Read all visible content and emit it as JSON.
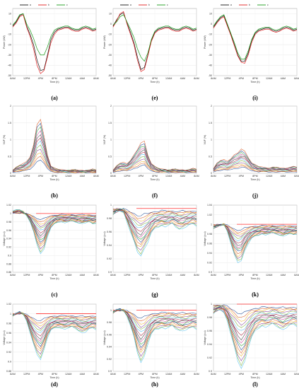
{
  "figure": {
    "panel_labels": [
      "(a)",
      "(b)",
      "(c)",
      "(d)",
      "(e)",
      "(f)",
      "(g)",
      "(h)",
      "(i)",
      "(j)",
      "(k)",
      "(l)"
    ]
  },
  "colors": {
    "legend_black": "#111111",
    "legend_red": "#e02020",
    "legend_green": "#1a9a1a",
    "reference_red": "#ff3030",
    "palette": [
      "#0b3c8c",
      "#d95319",
      "#edb120",
      "#7e2f8e",
      "#77ac30",
      "#4dbeee",
      "#a2142f",
      "#333333",
      "#cc3399",
      "#2ca02c"
    ]
  },
  "chart_data": [
    {
      "panel": "(a)",
      "type": "line",
      "ylabel": "Power (kW)",
      "xlabel": "Time (h)",
      "x_ticks": [
        "8AM",
        "12PM",
        "4PM",
        "8PM",
        "12AM",
        "4AM",
        "8AM"
      ],
      "y_ticks": [
        "10",
        "0",
        "-10",
        "-20",
        "-30",
        "-40",
        "-50"
      ],
      "ylim": [
        -50,
        15
      ],
      "legend": "top",
      "series": [
        {
          "legend_label": "a",
          "color": "#111111",
          "values": [
            -2,
            2,
            8,
            10,
            -2,
            -10,
            -20,
            -35,
            -45,
            -44,
            -30,
            -15,
            -8,
            -5,
            -4,
            -3,
            -3,
            -5,
            -6,
            -6,
            -4,
            -3,
            -4,
            -6,
            -5
          ]
        },
        {
          "legend_label": "b",
          "color": "#e02020",
          "values": [
            -3,
            1,
            7,
            9,
            -3,
            -12,
            -24,
            -40,
            -48,
            -45,
            -32,
            -18,
            -10,
            -6,
            -5,
            -4,
            -4,
            -6,
            -7,
            -7,
            -5,
            -4,
            -5,
            -7,
            -6
          ]
        },
        {
          "legend_label": "c",
          "color": "#1a9a1a",
          "values": [
            -1,
            3,
            9,
            10,
            0,
            -6,
            -14,
            -24,
            -30,
            -30,
            -22,
            -12,
            -6,
            -4,
            -3,
            -2,
            -2,
            -4,
            -5,
            -5,
            -3,
            -2,
            -3,
            -5,
            -4
          ]
        }
      ]
    },
    {
      "panel": "(e)",
      "type": "line",
      "ylabel": "Power (kW)",
      "xlabel": "Time (h)",
      "x_ticks": [
        "8AM",
        "12PM",
        "4PM",
        "8PM",
        "12AM",
        "4AM",
        "8AM"
      ],
      "y_ticks": [
        "10",
        "0",
        "-10",
        "-20",
        "-30",
        "-40",
        "-50"
      ],
      "ylim": [
        -50,
        15
      ],
      "legend": "top",
      "series": [
        {
          "legend_label": "a",
          "color": "#111111",
          "values": [
            -2,
            4,
            9,
            11,
            1,
            -8,
            -18,
            -32,
            -44,
            -42,
            -30,
            -16,
            -8,
            -5,
            -4,
            -3,
            -3,
            -5,
            -6,
            -6,
            -4,
            -3,
            -4,
            -6,
            -5
          ]
        },
        {
          "legend_label": "b",
          "color": "#e02020",
          "values": [
            -3,
            3,
            10,
            12,
            0,
            -10,
            -20,
            -35,
            -46,
            -44,
            -31,
            -17,
            -9,
            -6,
            -5,
            -4,
            -4,
            -6,
            -7,
            -7,
            -5,
            -4,
            -5,
            -7,
            -6
          ]
        },
        {
          "legend_label": "c",
          "color": "#1a9a1a",
          "values": [
            -1,
            2,
            7,
            9,
            2,
            -5,
            -13,
            -24,
            -32,
            -36,
            -28,
            -15,
            -7,
            -4,
            -3,
            -2,
            -2,
            -4,
            -5,
            -5,
            -3,
            -2,
            -3,
            -5,
            -4
          ]
        }
      ]
    },
    {
      "panel": "(i)",
      "type": "line",
      "ylabel": "Power (kW)",
      "xlabel": "Time (h)",
      "x_ticks": [
        "8AM",
        "12PM",
        "4PM",
        "8PM",
        "12AM",
        "4AM",
        "8AM"
      ],
      "y_ticks": [
        "10",
        "0",
        "-10",
        "-20",
        "-30",
        "-40",
        "-50"
      ],
      "ylim": [
        -50,
        15
      ],
      "legend": "top",
      "series": [
        {
          "legend_label": "a",
          "color": "#111111",
          "values": [
            -3,
            2,
            6,
            8,
            -1,
            -10,
            -20,
            -30,
            -36,
            -36,
            -28,
            -16,
            -9,
            -6,
            -5,
            -4,
            -4,
            -6,
            -7,
            -6,
            -4,
            -3,
            -4,
            -6,
            -5
          ]
        },
        {
          "legend_label": "b",
          "color": "#e02020",
          "values": [
            -4,
            1,
            5,
            7,
            -2,
            -11,
            -21,
            -31,
            -37,
            -38,
            -30,
            -18,
            -10,
            -7,
            -6,
            -5,
            -5,
            -7,
            -8,
            -7,
            -5,
            -4,
            -5,
            -7,
            -6
          ]
        },
        {
          "legend_label": "c",
          "color": "#1a9a1a",
          "values": [
            -2,
            3,
            7,
            9,
            0,
            -9,
            -18,
            -28,
            -34,
            -34,
            -26,
            -15,
            -8,
            -5,
            -4,
            -3,
            -3,
            -5,
            -6,
            -5,
            -3,
            -2,
            -3,
            -5,
            -4
          ]
        }
      ]
    },
    {
      "panel": "(b)",
      "type": "line",
      "ylabel": "VUF (%)",
      "xlabel": "Time (h)",
      "x_ticks": [
        "8AM",
        "12PM",
        "4PM",
        "8PM",
        "12AM",
        "4AM",
        "8AM"
      ],
      "y_ticks": [
        "2",
        "1.5",
        "1",
        "0.5",
        "0"
      ],
      "ylim": [
        0,
        2
      ],
      "profile": [
        0.1,
        0.18,
        0.24,
        0.28,
        0.35,
        0.5,
        0.85,
        1.45,
        1.6,
        1.1,
        0.55,
        0.22,
        0.15,
        0.12,
        0.1,
        0.1,
        0.09,
        0.1,
        0.1,
        0.09,
        0.08,
        0.09,
        0.1,
        0.12,
        0.1
      ],
      "bundle_count": 12
    },
    {
      "panel": "(f)",
      "type": "line",
      "ylabel": "VUF (%)",
      "xlabel": "Time (h)",
      "x_ticks": [
        "8AM",
        "12PM",
        "4PM",
        "8PM",
        "12AM",
        "4AM",
        "8AM"
      ],
      "y_ticks": [
        "2",
        "1.5",
        "1",
        "0.5",
        "0"
      ],
      "ylim": [
        0,
        2
      ],
      "profile": [
        0.1,
        0.22,
        0.3,
        0.32,
        0.28,
        0.4,
        0.55,
        0.7,
        0.9,
        0.95,
        0.55,
        0.3,
        0.2,
        0.15,
        0.12,
        0.12,
        0.1,
        0.12,
        0.12,
        0.1,
        0.1,
        0.1,
        0.12,
        0.14,
        0.12
      ],
      "bundle_count": 12
    },
    {
      "panel": "(j)",
      "type": "line",
      "ylabel": "VUF (%)",
      "xlabel": "Time (h)",
      "x_ticks": [
        "8AM",
        "12PM",
        "4PM",
        "8PM",
        "12AM",
        "4AM",
        "8AM"
      ],
      "y_ticks": [
        "2",
        "1.5",
        "1",
        "0.5",
        "0"
      ],
      "ylim": [
        0,
        2
      ],
      "profile": [
        0.15,
        0.3,
        0.38,
        0.4,
        0.35,
        0.45,
        0.55,
        0.6,
        0.72,
        0.65,
        0.48,
        0.32,
        0.25,
        0.2,
        0.18,
        0.17,
        0.16,
        0.18,
        0.18,
        0.16,
        0.15,
        0.16,
        0.18,
        0.2,
        0.18
      ],
      "bundle_count": 12
    },
    {
      "panel": "(c)",
      "type": "line",
      "ylabel": "Voltage (p.u)",
      "xlabel": "Time (h)",
      "x_ticks": [
        "8AM",
        "12PM",
        "4PM",
        "8PM",
        "12AM",
        "4AM",
        "8AM"
      ],
      "y_ticks": [
        "1.02",
        "1",
        "0.98",
        "0.96",
        "0.94",
        "0.92",
        "0.9",
        "0.88",
        "0.86"
      ],
      "ylim": [
        0.86,
        1.02
      ],
      "reference": 1.0,
      "profile": [
        1.005,
        1.008,
        1.01,
        1.005,
        0.995,
        0.98,
        0.955,
        0.925,
        0.905,
        0.915,
        0.945,
        0.965,
        0.975,
        0.98,
        0.98,
        0.978,
        0.98,
        0.982,
        0.98,
        0.978,
        0.976,
        0.978,
        0.98,
        0.975,
        0.978
      ],
      "bundle_count": 16
    },
    {
      "panel": "(g)",
      "type": "line",
      "ylabel": "Voltage (p.u)",
      "xlabel": "Time (h)",
      "x_ticks": [
        "8AM",
        "12PM",
        "4PM",
        "8PM",
        "12AM",
        "4AM",
        "8AM"
      ],
      "y_ticks": [
        "1",
        "0.98",
        "0.96",
        "0.94",
        "0.92",
        "0.9"
      ],
      "ylim": [
        0.9,
        1.0
      ],
      "reference": 0.995,
      "profile": [
        0.985,
        0.99,
        0.992,
        0.99,
        0.975,
        0.96,
        0.945,
        0.93,
        0.925,
        0.935,
        0.945,
        0.958,
        0.965,
        0.968,
        0.97,
        0.968,
        0.97,
        0.972,
        0.968,
        0.965,
        0.965,
        0.968,
        0.97,
        0.972,
        0.97
      ],
      "bundle_count": 16
    },
    {
      "panel": "(k)",
      "type": "line",
      "ylabel": "Voltage (p.u)",
      "xlabel": "Time (h)",
      "x_ticks": [
        "8AM",
        "12PM",
        "4PM",
        "8PM",
        "12AM",
        "4AM",
        "8AM"
      ],
      "y_ticks": [
        "1.04",
        "1.02",
        "1",
        "0.98",
        "0.96",
        "0.94",
        "0.92",
        "0.9"
      ],
      "ylim": [
        0.9,
        1.04
      ],
      "reference": 1.0,
      "profile": [
        0.99,
        0.995,
        0.998,
        1.0,
        0.985,
        0.96,
        0.935,
        0.92,
        0.925,
        0.945,
        0.96,
        0.97,
        0.975,
        0.978,
        0.98,
        0.978,
        0.98,
        0.982,
        0.98,
        0.978,
        0.975,
        0.978,
        0.98,
        0.978,
        0.98
      ],
      "bundle_count": 16
    },
    {
      "panel": "(d)",
      "type": "line",
      "ylabel": "Voltage (p.u)",
      "xlabel": "Time (h)",
      "x_ticks": [
        "8AM",
        "12PM",
        "4PM",
        "8PM",
        "12AM",
        "4AM",
        "8AM"
      ],
      "y_ticks": [
        "1.02",
        "1",
        "0.98",
        "0.96",
        "0.94",
        "0.92",
        "0.9",
        "0.88"
      ],
      "ylim": [
        0.88,
        1.02
      ],
      "reference": 1.0,
      "profile": [
        0.995,
        1.0,
        1.005,
        1.0,
        0.985,
        0.96,
        0.935,
        0.915,
        0.905,
        0.925,
        0.95,
        0.965,
        0.97,
        0.972,
        0.97,
        0.968,
        0.97,
        0.972,
        0.97,
        0.965,
        0.96,
        0.962,
        0.968,
        0.97,
        0.968
      ],
      "bundle_count": 16
    },
    {
      "panel": "(h)",
      "type": "line",
      "ylabel": "Voltage (p.u)",
      "xlabel": "Time (h)",
      "x_ticks": [
        "8AM",
        "12PM",
        "4PM",
        "8PM",
        "12AM",
        "4AM",
        "8AM"
      ],
      "y_ticks": [
        "1",
        "0.98",
        "0.96",
        "0.94",
        "0.92",
        "0.9"
      ],
      "ylim": [
        0.9,
        1.01
      ],
      "reference": 1.0,
      "profile": [
        0.995,
        1.0,
        1.002,
        1.0,
        0.99,
        0.975,
        0.955,
        0.93,
        0.915,
        0.925,
        0.945,
        0.96,
        0.968,
        0.97,
        0.972,
        0.97,
        0.972,
        0.974,
        0.97,
        0.968,
        0.966,
        0.968,
        0.97,
        0.972,
        0.97
      ],
      "bundle_count": 16
    },
    {
      "panel": "(l)",
      "type": "line",
      "ylabel": "Voltage (p.u)",
      "xlabel": "Time (h)",
      "x_ticks": [
        "8AM",
        "12PM",
        "4PM",
        "8PM",
        "12AM",
        "4AM",
        "8AM"
      ],
      "y_ticks": [
        "1",
        "0.98",
        "0.96",
        "0.94",
        "0.92",
        "0.9"
      ],
      "ylim": [
        0.9,
        1.0
      ],
      "reference": 1.0,
      "profile": [
        0.985,
        0.99,
        0.992,
        0.988,
        0.975,
        0.955,
        0.935,
        0.915,
        0.905,
        0.915,
        0.935,
        0.95,
        0.96,
        0.965,
        0.968,
        0.966,
        0.968,
        0.97,
        0.968,
        0.965,
        0.962,
        0.965,
        0.968,
        0.97,
        0.968
      ],
      "bundle_count": 16
    }
  ]
}
